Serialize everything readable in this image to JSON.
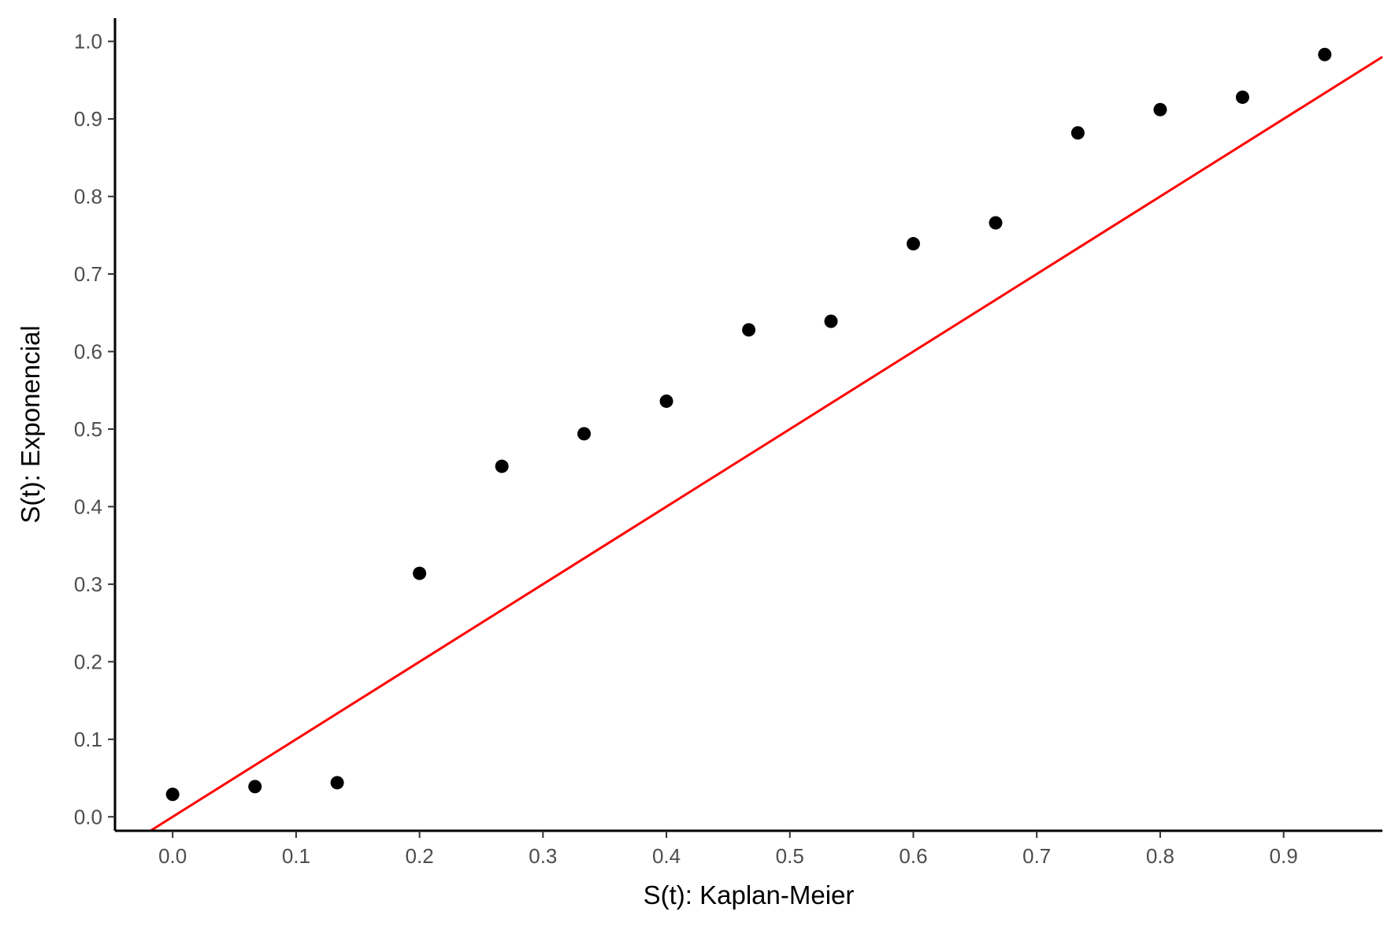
{
  "chart_data": {
    "type": "scatter",
    "xlabel": "S(t): Kaplan-Meier",
    "ylabel": "S(t): Exponencial",
    "xlim": [
      -0.0467,
      0.98
    ],
    "ylim": [
      -0.018,
      1.03
    ],
    "x_ticks": [
      "0.0",
      "0.1",
      "0.2",
      "0.3",
      "0.4",
      "0.5",
      "0.6",
      "0.7",
      "0.8",
      "0.9"
    ],
    "y_ticks": [
      "0.0",
      "0.1",
      "0.2",
      "0.3",
      "0.4",
      "0.5",
      "0.6",
      "0.7",
      "0.8",
      "0.9",
      "1.0"
    ],
    "grid": false,
    "points": [
      {
        "x": 0.0,
        "y": 0.029
      },
      {
        "x": 0.0667,
        "y": 0.039
      },
      {
        "x": 0.1333,
        "y": 0.044
      },
      {
        "x": 0.2,
        "y": 0.314
      },
      {
        "x": 0.2667,
        "y": 0.452
      },
      {
        "x": 0.3333,
        "y": 0.494
      },
      {
        "x": 0.4,
        "y": 0.536
      },
      {
        "x": 0.4667,
        "y": 0.628
      },
      {
        "x": 0.5333,
        "y": 0.639
      },
      {
        "x": 0.6,
        "y": 0.739
      },
      {
        "x": 0.6667,
        "y": 0.766
      },
      {
        "x": 0.7333,
        "y": 0.882
      },
      {
        "x": 0.8,
        "y": 0.912
      },
      {
        "x": 0.8667,
        "y": 0.928
      },
      {
        "x": 0.9333,
        "y": 0.983
      }
    ],
    "reference_line": {
      "slope": 1,
      "intercept": 0
    },
    "colors": {
      "points": "#000000",
      "reference_line": "#ff0000",
      "axis": "#000000",
      "tick_text": "#4d4d4d"
    }
  }
}
